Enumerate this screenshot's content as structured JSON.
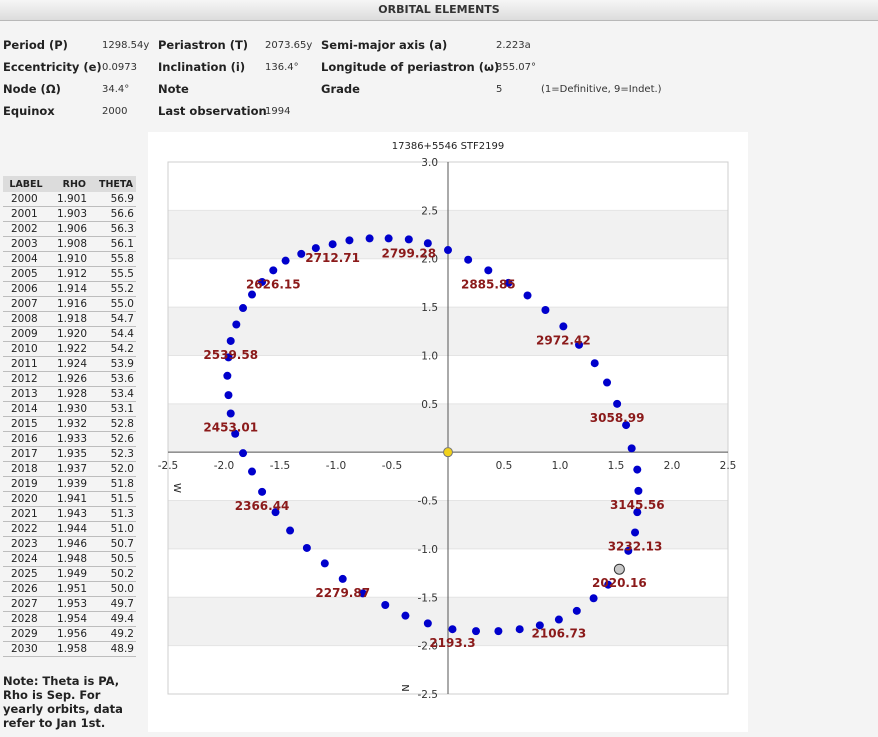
{
  "header": {
    "title": "ORBITAL ELEMENTS"
  },
  "elements": {
    "period_label": "Period (P)",
    "period_value": "1298.54y",
    "periastron_label": "Periastron (T)",
    "periastron_value": "2073.65y",
    "semimajor_label": "Semi-major axis (a)",
    "semimajor_value": "2.223a",
    "ecc_label": "Eccentricity (e)",
    "ecc_value": "0.0973",
    "incl_label": "Inclination (i)",
    "incl_value": "136.4°",
    "lonper_label": "Longitude of periastron (ω)",
    "lonper_value": "355.07°",
    "node_label": "Node (Ω)",
    "node_value": "34.4°",
    "note_label": "Note",
    "grade_label": "Grade",
    "grade_value": "5",
    "grade_note": "(1=Definitive, 9=Indet.)",
    "equinox_label": "Equinox",
    "equinox_value": "2000",
    "lastobs_label": "Last observation",
    "lastobs_value": "1994"
  },
  "table": {
    "headers": [
      "LABEL",
      "RHO",
      "THETA"
    ],
    "rows": [
      [
        "2000",
        "1.901",
        "56.9"
      ],
      [
        "2001",
        "1.903",
        "56.6"
      ],
      [
        "2002",
        "1.906",
        "56.3"
      ],
      [
        "2003",
        "1.908",
        "56.1"
      ],
      [
        "2004",
        "1.910",
        "55.8"
      ],
      [
        "2005",
        "1.912",
        "55.5"
      ],
      [
        "2006",
        "1.914",
        "55.2"
      ],
      [
        "2007",
        "1.916",
        "55.0"
      ],
      [
        "2008",
        "1.918",
        "54.7"
      ],
      [
        "2009",
        "1.920",
        "54.4"
      ],
      [
        "2010",
        "1.922",
        "54.2"
      ],
      [
        "2011",
        "1.924",
        "53.9"
      ],
      [
        "2012",
        "1.926",
        "53.6"
      ],
      [
        "2013",
        "1.928",
        "53.4"
      ],
      [
        "2014",
        "1.930",
        "53.1"
      ],
      [
        "2015",
        "1.932",
        "52.8"
      ],
      [
        "2016",
        "1.933",
        "52.6"
      ],
      [
        "2017",
        "1.935",
        "52.3"
      ],
      [
        "2018",
        "1.937",
        "52.0"
      ],
      [
        "2019",
        "1.939",
        "51.8"
      ],
      [
        "2020",
        "1.941",
        "51.5"
      ],
      [
        "2021",
        "1.943",
        "51.3"
      ],
      [
        "2022",
        "1.944",
        "51.0"
      ],
      [
        "2023",
        "1.946",
        "50.7"
      ],
      [
        "2024",
        "1.948",
        "50.5"
      ],
      [
        "2025",
        "1.949",
        "50.2"
      ],
      [
        "2026",
        "1.951",
        "50.0"
      ],
      [
        "2027",
        "1.953",
        "49.7"
      ],
      [
        "2028",
        "1.954",
        "49.4"
      ],
      [
        "2029",
        "1.956",
        "49.2"
      ],
      [
        "2030",
        "1.958",
        "48.9"
      ]
    ]
  },
  "note": {
    "text": "Note: Theta is PA, Rho is Sep. For yearly orbits, data refer to Jan 1st."
  },
  "chart_data": {
    "type": "scatter",
    "title": "17386+5546 STF2199",
    "xlim": [
      -2.5,
      2.5
    ],
    "ylim": [
      -2.5,
      3.0
    ],
    "x_ticks": [
      -2.5,
      -2.0,
      -1.5,
      -1.0,
      -0.5,
      0.5,
      1.0,
      1.5,
      2.0,
      2.5
    ],
    "y_ticks": [
      3.0,
      2.5,
      2.0,
      1.5,
      1.0,
      0.5,
      -0.5,
      -1.0,
      -1.5,
      -2.0,
      -2.5
    ],
    "tick_labels_x": [
      "-2.5",
      "-2.0",
      "-1.5",
      "-1.0",
      "-0.5",
      "0.5",
      "1.0",
      "1.5",
      "2.0",
      "2.5"
    ],
    "tick_labels_y": [
      "3.0",
      "2.5",
      "2.0",
      "1.5",
      "1.0",
      "0.5",
      "-0.5",
      "-1.0",
      "-1.5",
      "-2.0",
      "-2.5"
    ],
    "axis_letter_w": "W",
    "axis_letter_n": "N",
    "primary": [
      0,
      0
    ],
    "current_position": [
      1.53,
      -1.21
    ],
    "grid": "alternating horizontal bands",
    "colors": {
      "point": "#0000cc",
      "label": "#8b1a1a",
      "primary": "#f2d21b",
      "current": "#c8c8c8",
      "band": "#f1f1f1"
    },
    "points": [
      [
        -0.18,
        -1.77
      ],
      [
        -0.38,
        -1.69
      ],
      [
        -0.56,
        -1.58
      ],
      [
        -0.76,
        -1.46
      ],
      [
        -0.94,
        -1.31
      ],
      [
        -1.1,
        -1.15
      ],
      [
        -1.26,
        -0.99
      ],
      [
        -1.41,
        -0.81
      ],
      [
        -1.54,
        -0.62
      ],
      [
        -1.66,
        -0.41
      ],
      [
        -1.75,
        -0.2
      ],
      [
        -1.83,
        -0.01
      ],
      [
        -1.9,
        0.19
      ],
      [
        -1.94,
        0.4
      ],
      [
        -1.96,
        0.59
      ],
      [
        -1.97,
        0.79
      ],
      [
        -1.96,
        0.98
      ],
      [
        -1.94,
        1.15
      ],
      [
        -1.89,
        1.32
      ],
      [
        -1.83,
        1.49
      ],
      [
        -1.75,
        1.63
      ],
      [
        -1.66,
        1.76
      ],
      [
        -1.56,
        1.88
      ],
      [
        -1.45,
        1.98
      ],
      [
        -1.31,
        2.05
      ],
      [
        -1.18,
        2.11
      ],
      [
        -1.03,
        2.15
      ],
      [
        -0.88,
        2.19
      ],
      [
        -0.7,
        2.21
      ],
      [
        -0.53,
        2.21
      ],
      [
        -0.35,
        2.2
      ],
      [
        -0.18,
        2.16
      ],
      [
        0.0,
        2.09
      ],
      [
        0.18,
        1.99
      ],
      [
        0.36,
        1.88
      ],
      [
        0.54,
        1.75
      ],
      [
        0.71,
        1.62
      ],
      [
        0.87,
        1.47
      ],
      [
        1.03,
        1.3
      ],
      [
        1.17,
        1.11
      ],
      [
        1.31,
        0.92
      ],
      [
        1.42,
        0.72
      ],
      [
        1.51,
        0.5
      ],
      [
        1.59,
        0.28
      ],
      [
        1.64,
        0.04
      ],
      [
        1.69,
        -0.18
      ],
      [
        1.7,
        -0.4
      ],
      [
        1.69,
        -0.62
      ],
      [
        1.67,
        -0.83
      ],
      [
        1.61,
        -1.02
      ],
      [
        1.53,
        -1.21
      ],
      [
        1.43,
        -1.37
      ],
      [
        1.3,
        -1.51
      ],
      [
        1.15,
        -1.64
      ],
      [
        0.99,
        -1.73
      ],
      [
        0.82,
        -1.79
      ],
      [
        0.64,
        -1.83
      ],
      [
        0.45,
        -1.85
      ],
      [
        0.25,
        -1.85
      ],
      [
        0.04,
        -1.83
      ]
    ],
    "epoch_labels": [
      {
        "text": "2020.16",
        "x": 1.53,
        "y": -1.21
      },
      {
        "text": "2106.73",
        "x": 0.99,
        "y": -1.73
      },
      {
        "text": "2193.3",
        "x": 0.04,
        "y": -1.83
      },
      {
        "text": "2279.87",
        "x": -0.94,
        "y": -1.31
      },
      {
        "text": "2366.44",
        "x": -1.66,
        "y": -0.41
      },
      {
        "text": "2453.01",
        "x": -1.94,
        "y": 0.4
      },
      {
        "text": "2539.58",
        "x": -1.94,
        "y": 1.15
      },
      {
        "text": "2626.15",
        "x": -1.56,
        "y": 1.88
      },
      {
        "text": "2712.71",
        "x": -1.03,
        "y": 2.15
      },
      {
        "text": "2799.28",
        "x": -0.35,
        "y": 2.2
      },
      {
        "text": "2885.85",
        "x": 0.36,
        "y": 1.88
      },
      {
        "text": "2972.42",
        "x": 1.03,
        "y": 1.3
      },
      {
        "text": "3058.99",
        "x": 1.51,
        "y": 0.5
      },
      {
        "text": "3145.56",
        "x": 1.69,
        "y": -0.4
      },
      {
        "text": "3232.13",
        "x": 1.67,
        "y": -0.83
      }
    ]
  }
}
